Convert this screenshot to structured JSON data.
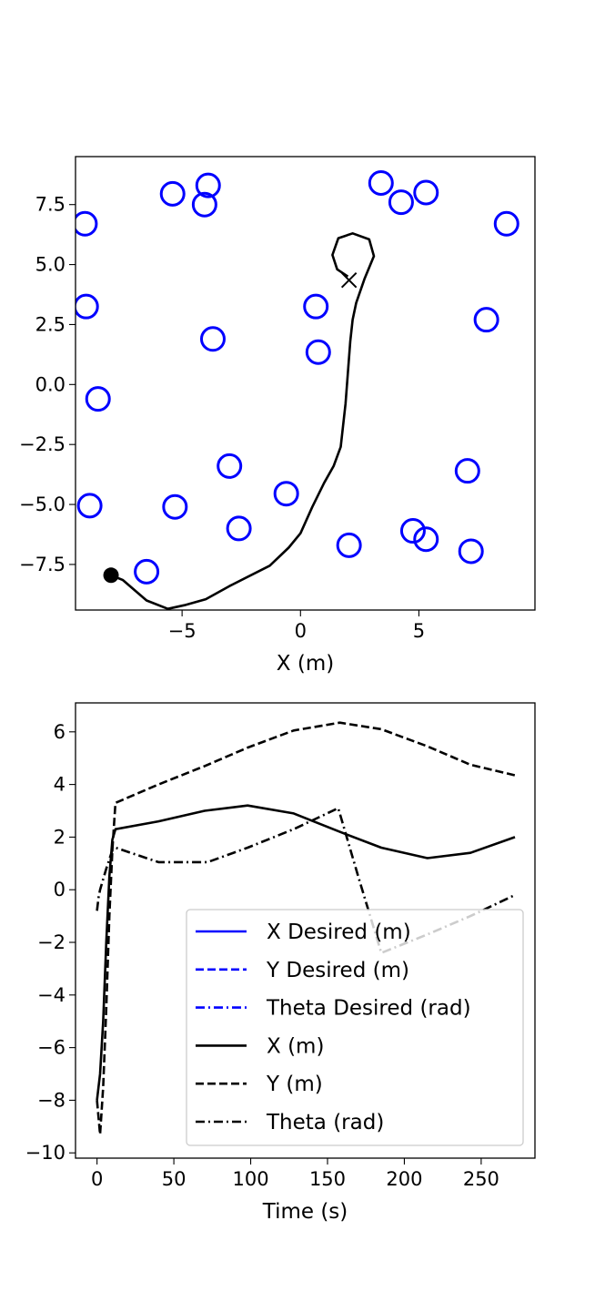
{
  "chart_data": [
    {
      "type": "scatter",
      "title": "",
      "xlabel": "X (m)",
      "ylabel": "",
      "xlim": [
        -9.5,
        9.9
      ],
      "ylim": [
        -9.4,
        9.5
      ],
      "xticks": [
        -5,
        0,
        5
      ],
      "xtick_labels": [
        "−5",
        "0",
        "5"
      ],
      "yticks": [
        -7.5,
        -5.0,
        -2.5,
        0.0,
        2.5,
        5.0,
        7.5
      ],
      "ytick_labels": [
        "−7.5",
        "−5.0",
        "−2.5",
        "0.0",
        "2.5",
        "5.0",
        "7.5"
      ],
      "grid": false,
      "obstacles_color": "#0000ff",
      "obstacles": [
        {
          "x": -9.1,
          "y": 6.7
        },
        {
          "x": -5.4,
          "y": 7.95
        },
        {
          "x": -3.9,
          "y": 8.3
        },
        {
          "x": -4.05,
          "y": 7.5
        },
        {
          "x": 3.4,
          "y": 8.4
        },
        {
          "x": 4.25,
          "y": 7.6
        },
        {
          "x": 5.3,
          "y": 8.0
        },
        {
          "x": 8.7,
          "y": 6.7
        },
        {
          "x": -9.05,
          "y": 3.25
        },
        {
          "x": 0.65,
          "y": 3.25
        },
        {
          "x": 7.85,
          "y": 2.7
        },
        {
          "x": -3.7,
          "y": 1.9
        },
        {
          "x": 0.75,
          "y": 1.35
        },
        {
          "x": -8.55,
          "y": -0.6
        },
        {
          "x": -3.0,
          "y": -3.4
        },
        {
          "x": 7.05,
          "y": -3.6
        },
        {
          "x": -8.9,
          "y": -5.05
        },
        {
          "x": -5.3,
          "y": -5.1
        },
        {
          "x": -0.6,
          "y": -4.55
        },
        {
          "x": -2.6,
          "y": -6.0
        },
        {
          "x": 4.75,
          "y": -6.1
        },
        {
          "x": 5.3,
          "y": -6.45
        },
        {
          "x": 2.05,
          "y": -6.7
        },
        {
          "x": 7.2,
          "y": -6.95
        },
        {
          "x": -6.5,
          "y": -7.8
        }
      ],
      "path": {
        "x": [
          -8.0,
          -7.5,
          -6.5,
          -5.6,
          -4.9,
          -4.0,
          -3.0,
          -1.3,
          -0.5,
          0.0,
          0.5,
          1.0,
          1.4,
          1.7,
          1.9,
          2.0,
          2.1,
          2.2,
          2.35,
          2.7,
          3.1,
          2.9,
          2.2,
          1.6,
          1.35,
          1.55,
          2.0
        ],
        "y": [
          -7.95,
          -8.15,
          -9.0,
          -9.35,
          -9.2,
          -8.95,
          -8.4,
          -7.55,
          -6.8,
          -6.2,
          -5.1,
          -4.1,
          -3.4,
          -2.6,
          -0.8,
          0.5,
          1.8,
          2.7,
          3.4,
          4.4,
          5.35,
          6.05,
          6.3,
          6.1,
          5.4,
          4.8,
          4.5
        ]
      },
      "start": {
        "x": -8.0,
        "y": -7.95
      },
      "goal": {
        "x": 2.05,
        "y": 4.35
      },
      "path_color": "#000000"
    },
    {
      "type": "line",
      "title": "",
      "xlabel": "Time (s)",
      "ylabel": "",
      "xlim": [
        -14,
        285
      ],
      "ylim": [
        -10.2,
        7.1
      ],
      "xticks": [
        0,
        50,
        100,
        150,
        200,
        250
      ],
      "xtick_labels": [
        "0",
        "50",
        "100",
        "150",
        "200",
        "250"
      ],
      "yticks": [
        -10,
        -8,
        -6,
        -4,
        -2,
        0,
        2,
        4,
        6
      ],
      "ytick_labels": [
        "−10",
        "−8",
        "−6",
        "−4",
        "−2",
        "0",
        "2",
        "4",
        "6"
      ],
      "grid": false,
      "legend_position": "lower-right",
      "series": [
        {
          "name": "X Desired (m)",
          "color": "#0000ff",
          "style": "solid",
          "x": [],
          "y": []
        },
        {
          "name": "Y Desired (m)",
          "color": "#0000ff",
          "style": "dashed",
          "x": [],
          "y": []
        },
        {
          "name": "Theta Desired (rad)",
          "color": "#0000ff",
          "style": "dashdot",
          "x": [],
          "y": []
        },
        {
          "name": "X (m)",
          "color": "#000000",
          "style": "solid",
          "x": [
            0,
            2,
            4,
            6,
            8,
            10,
            12,
            40,
            70,
            98,
            128,
            158,
            185,
            215,
            243,
            272
          ],
          "y": [
            -8.0,
            -7.0,
            -5.0,
            -2.0,
            0.5,
            1.9,
            2.3,
            2.6,
            3.0,
            3.2,
            2.9,
            2.2,
            1.6,
            1.2,
            1.4,
            2.0
          ]
        },
        {
          "name": "Y (m)",
          "color": "#000000",
          "style": "dashed",
          "x": [
            0,
            2,
            4,
            6,
            8,
            10,
            12,
            40,
            70,
            98,
            128,
            158,
            185,
            215,
            243,
            272
          ],
          "y": [
            -8.0,
            -9.3,
            -7.5,
            -4.5,
            -1.0,
            1.5,
            3.3,
            4.0,
            4.7,
            5.4,
            6.05,
            6.35,
            6.1,
            5.45,
            4.75,
            4.35
          ]
        },
        {
          "name": "Theta (rad)",
          "color": "#000000",
          "style": "dashdot",
          "x": [
            0,
            1,
            2,
            4,
            6,
            10,
            12,
            40,
            72,
            98,
            128,
            157,
            170,
            185,
            215,
            243,
            272
          ],
          "y": [
            -0.8,
            -0.3,
            0.0,
            0.4,
            0.8,
            1.5,
            1.6,
            1.05,
            1.05,
            1.6,
            2.3,
            3.1,
            0.5,
            -2.4,
            -1.7,
            -1.0,
            -0.2
          ]
        }
      ]
    }
  ]
}
